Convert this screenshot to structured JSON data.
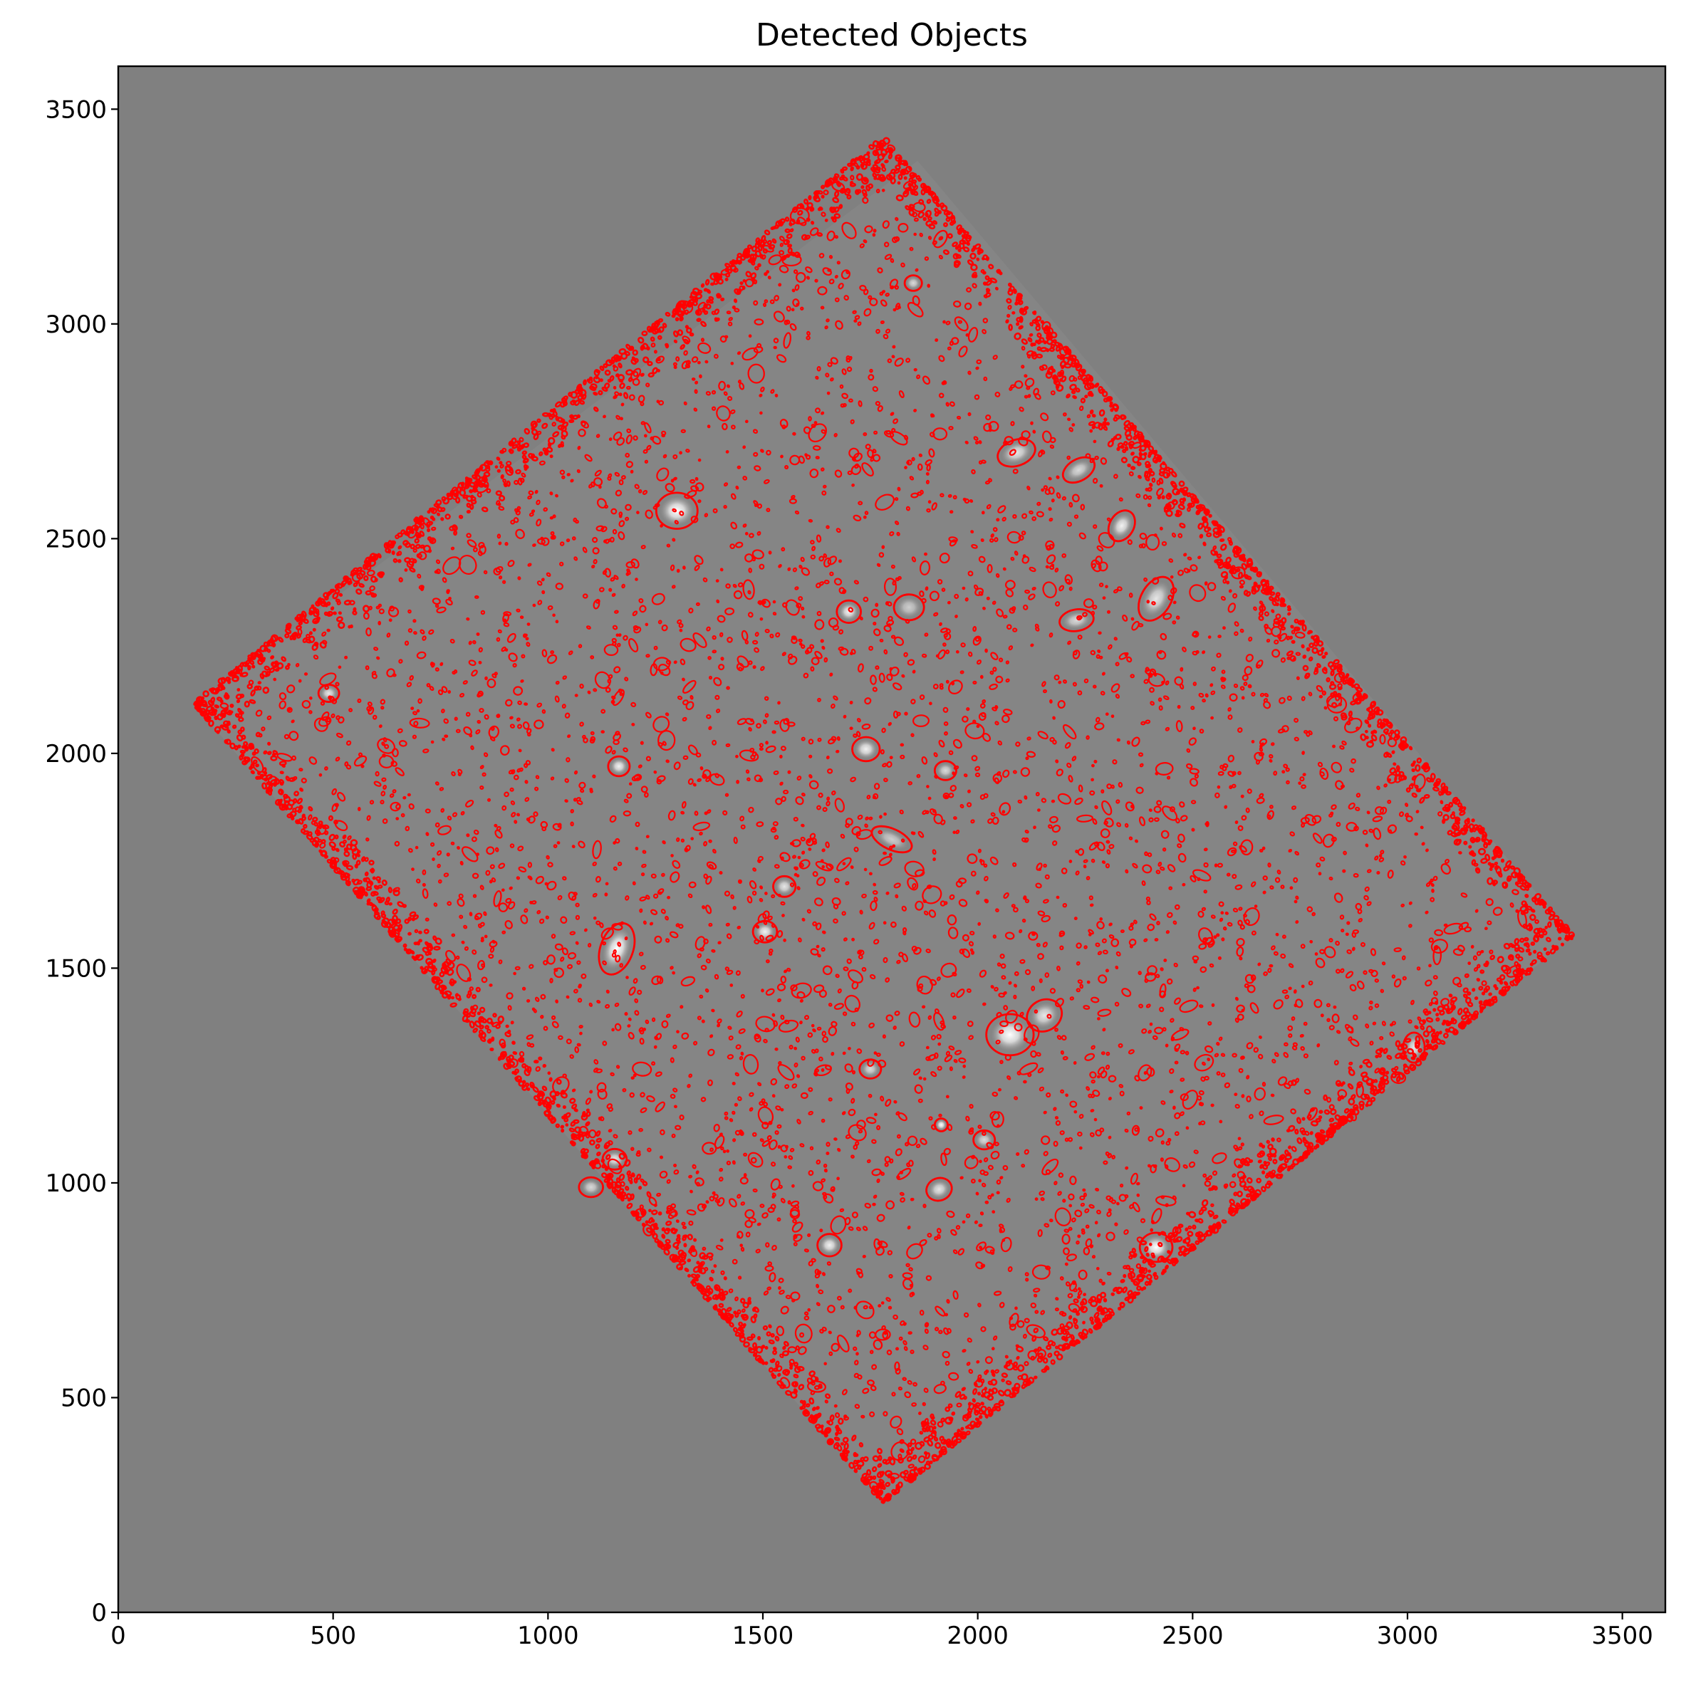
{
  "chart_data": {
    "type": "image",
    "title": "Detected Objects",
    "xlabel": "",
    "ylabel": "",
    "xlim": [
      0,
      3600
    ],
    "ylim": [
      0,
      3600
    ],
    "xticks": [
      0,
      500,
      1000,
      1500,
      2000,
      2500,
      3000,
      3500
    ],
    "yticks": [
      0,
      500,
      1000,
      1500,
      2000,
      2500,
      3000,
      3500
    ],
    "xtick_labels": [
      "0",
      "500",
      "1000",
      "1500",
      "2000",
      "2500",
      "3000",
      "3500"
    ],
    "ytick_labels": [
      "0",
      "500",
      "1000",
      "1500",
      "2000",
      "2500",
      "3000",
      "3500"
    ],
    "background_color": "#808080",
    "marker_color": "#ff0000",
    "field_corners": [
      [
        1860,
        3380
      ],
      [
        3385,
        1575
      ],
      [
        1780,
        255
      ],
      [
        175,
        2115
      ]
    ],
    "bright_sources": [
      {
        "x": 1300,
        "y": 2565,
        "a": 48,
        "b": 42,
        "angle": 0,
        "brightness": 1.0
      },
      {
        "x": 1160,
        "y": 1545,
        "a": 62,
        "b": 38,
        "angle": 70,
        "brightness": 1.0
      },
      {
        "x": 2075,
        "y": 1345,
        "a": 55,
        "b": 48,
        "angle": 0,
        "brightness": 1.0
      },
      {
        "x": 2415,
        "y": 850,
        "a": 38,
        "b": 34,
        "angle": 0,
        "brightness": 1.0
      },
      {
        "x": 1740,
        "y": 2010,
        "a": 32,
        "b": 28,
        "angle": 0,
        "brightness": 0.9
      },
      {
        "x": 2335,
        "y": 2530,
        "a": 38,
        "b": 28,
        "angle": 60,
        "brightness": 0.9
      },
      {
        "x": 1915,
        "y": 1135,
        "a": 15,
        "b": 15,
        "angle": 0,
        "brightness": 1.0
      },
      {
        "x": 2155,
        "y": 1390,
        "a": 42,
        "b": 36,
        "angle": 30,
        "brightness": 0.8
      },
      {
        "x": 1165,
        "y": 1970,
        "a": 25,
        "b": 23,
        "angle": 0,
        "brightness": 0.9
      },
      {
        "x": 1700,
        "y": 2330,
        "a": 28,
        "b": 26,
        "angle": 0,
        "brightness": 0.9
      },
      {
        "x": 1505,
        "y": 1585,
        "a": 28,
        "b": 25,
        "angle": 0,
        "brightness": 0.9
      },
      {
        "x": 1655,
        "y": 855,
        "a": 28,
        "b": 26,
        "angle": 0,
        "brightness": 0.9
      },
      {
        "x": 1910,
        "y": 985,
        "a": 30,
        "b": 26,
        "angle": 20,
        "brightness": 0.8
      },
      {
        "x": 3015,
        "y": 1315,
        "a": 25,
        "b": 35,
        "angle": 0,
        "brightness": 0.8
      },
      {
        "x": 1550,
        "y": 1690,
        "a": 26,
        "b": 24,
        "angle": 0,
        "brightness": 0.8
      },
      {
        "x": 490,
        "y": 2140,
        "a": 24,
        "b": 20,
        "angle": 0,
        "brightness": 0.8
      },
      {
        "x": 2090,
        "y": 2700,
        "a": 45,
        "b": 30,
        "angle": 20,
        "brightness": 0.8
      },
      {
        "x": 2235,
        "y": 2660,
        "a": 40,
        "b": 25,
        "angle": 30,
        "brightness": 0.7
      },
      {
        "x": 1850,
        "y": 3095,
        "a": 20,
        "b": 18,
        "angle": 0,
        "brightness": 0.7
      },
      {
        "x": 1800,
        "y": 1800,
        "a": 50,
        "b": 24,
        "angle": -25,
        "brightness": 0.6
      },
      {
        "x": 2415,
        "y": 2360,
        "a": 55,
        "b": 35,
        "angle": 60,
        "brightness": 0.8
      },
      {
        "x": 1155,
        "y": 1055,
        "a": 28,
        "b": 24,
        "angle": 0,
        "brightness": 0.8
      },
      {
        "x": 1100,
        "y": 990,
        "a": 28,
        "b": 23,
        "angle": 0,
        "brightness": 0.7
      },
      {
        "x": 1925,
        "y": 1960,
        "a": 25,
        "b": 22,
        "angle": 0,
        "brightness": 0.7
      },
      {
        "x": 2015,
        "y": 1100,
        "a": 25,
        "b": 22,
        "angle": 0,
        "brightness": 0.7
      },
      {
        "x": 1750,
        "y": 1265,
        "a": 25,
        "b": 22,
        "angle": 0,
        "brightness": 0.7
      },
      {
        "x": 2230,
        "y": 2310,
        "a": 40,
        "b": 25,
        "angle": 10,
        "brightness": 0.7
      },
      {
        "x": 1840,
        "y": 2340,
        "a": 35,
        "b": 30,
        "angle": 0,
        "brightness": 0.6
      },
      {
        "x": 1200,
        "y": 1700,
        "a": 0,
        "b": 0,
        "angle": 0,
        "brightness": 0
      }
    ],
    "detections": [
      {
        "x": 1300,
        "y": 2565,
        "a": 48,
        "b": 42,
        "angle": 0
      },
      {
        "x": 1160,
        "y": 1545,
        "a": 62,
        "b": 38,
        "angle": 70
      },
      {
        "x": 2075,
        "y": 1345,
        "a": 55,
        "b": 48,
        "angle": 0
      },
      {
        "x": 2415,
        "y": 850,
        "a": 38,
        "b": 34,
        "angle": 0
      },
      {
        "x": 1740,
        "y": 2010,
        "a": 32,
        "b": 28,
        "angle": 0
      },
      {
        "x": 2335,
        "y": 2530,
        "a": 38,
        "b": 28,
        "angle": 60
      },
      {
        "x": 1915,
        "y": 1135,
        "a": 15,
        "b": 15,
        "angle": 0
      },
      {
        "x": 2155,
        "y": 1390,
        "a": 42,
        "b": 36,
        "angle": 30
      },
      {
        "x": 1165,
        "y": 1970,
        "a": 25,
        "b": 23,
        "angle": 0
      },
      {
        "x": 1700,
        "y": 2330,
        "a": 28,
        "b": 26,
        "angle": 0
      },
      {
        "x": 1505,
        "y": 1585,
        "a": 28,
        "b": 25,
        "angle": 0
      },
      {
        "x": 1655,
        "y": 855,
        "a": 28,
        "b": 26,
        "angle": 0
      },
      {
        "x": 1910,
        "y": 985,
        "a": 30,
        "b": 26,
        "angle": 20
      },
      {
        "x": 3015,
        "y": 1315,
        "a": 25,
        "b": 35,
        "angle": 0
      },
      {
        "x": 1550,
        "y": 1690,
        "a": 26,
        "b": 24,
        "angle": 0
      },
      {
        "x": 490,
        "y": 2140,
        "a": 24,
        "b": 20,
        "angle": 0
      },
      {
        "x": 2090,
        "y": 2700,
        "a": 45,
        "b": 30,
        "angle": 20
      },
      {
        "x": 2235,
        "y": 2660,
        "a": 40,
        "b": 25,
        "angle": 30
      },
      {
        "x": 1850,
        "y": 3095,
        "a": 20,
        "b": 18,
        "angle": 0
      },
      {
        "x": 1800,
        "y": 1800,
        "a": 50,
        "b": 24,
        "angle": -25
      },
      {
        "x": 2415,
        "y": 2360,
        "a": 55,
        "b": 35,
        "angle": 60
      },
      {
        "x": 1155,
        "y": 1055,
        "a": 28,
        "b": 24,
        "angle": 0
      },
      {
        "x": 1100,
        "y": 990,
        "a": 28,
        "b": 23,
        "angle": 0
      },
      {
        "x": 1925,
        "y": 1960,
        "a": 25,
        "b": 22,
        "angle": 0
      },
      {
        "x": 2015,
        "y": 1100,
        "a": 25,
        "b": 22,
        "angle": 0
      },
      {
        "x": 1750,
        "y": 1265,
        "a": 25,
        "b": 22,
        "angle": 0
      },
      {
        "x": 2230,
        "y": 2310,
        "a": 40,
        "b": 25,
        "angle": 10
      },
      {
        "x": 1840,
        "y": 2340,
        "a": 35,
        "b": 30,
        "angle": 0
      },
      {
        "x": 1510,
        "y": 2140,
        "a": 0,
        "b": 0,
        "angle": 0
      },
      {
        "x": 1020,
        "y": 1880,
        "a": 0,
        "b": 0,
        "angle": 0
      },
      {
        "x": 2790,
        "y": 1860,
        "a": 0,
        "b": 0,
        "angle": 0
      },
      {
        "x": 770,
        "y": 2270,
        "a": 0,
        "b": 0,
        "angle": 0
      },
      {
        "x": 2930,
        "y": 1995,
        "a": 0,
        "b": 0,
        "angle": 0
      },
      {
        "x": 1490,
        "y": 2720,
        "a": 0,
        "b": 0,
        "angle": 0
      },
      {
        "x": 2660,
        "y": 1200,
        "a": 0,
        "b": 0,
        "angle": 0
      },
      {
        "x": 1380,
        "y": 1310,
        "a": 0,
        "b": 0,
        "angle": 0
      },
      {
        "x": 1700,
        "y": 2800,
        "a": 0,
        "b": 0,
        "angle": 0
      },
      {
        "x": 2760,
        "y": 1640,
        "a": 0,
        "b": 0,
        "angle": 0
      },
      {
        "x": 960,
        "y": 2405,
        "a": 0,
        "b": 0,
        "angle": 0
      },
      {
        "x": 2490,
        "y": 2220,
        "a": 0,
        "b": 0,
        "angle": 0
      },
      {
        "x": 1510,
        "y": 2190,
        "a": 0,
        "b": 0,
        "angle": 0
      }
    ]
  }
}
